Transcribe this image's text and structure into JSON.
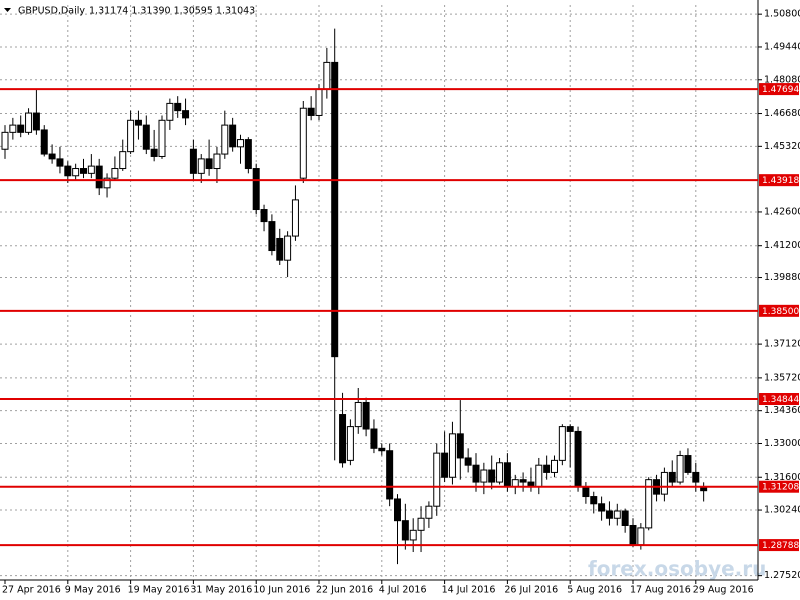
{
  "chart_data": {
    "type": "candlestick",
    "symbol": "GBPUSD,Daily",
    "quote": "1.31174 1.31390 1.30595 1.31043",
    "watermark": "forex.osobye.ru",
    "categories": [
      "27 Apr 2016",
      null,
      null,
      null,
      null,
      null,
      null,
      null,
      "9 May 2016",
      null,
      null,
      null,
      null,
      null,
      null,
      null,
      "19 May 2016",
      null,
      null,
      null,
      null,
      null,
      null,
      null,
      "31 May 2016",
      null,
      null,
      null,
      null,
      null,
      null,
      null,
      "10 Jun 2016",
      null,
      null,
      null,
      null,
      null,
      null,
      null,
      "22 Jun 2016",
      null,
      null,
      null,
      null,
      null,
      null,
      null,
      "4 Jul 2016",
      null,
      null,
      null,
      null,
      null,
      null,
      null,
      "14 Jul 2016",
      null,
      null,
      null,
      null,
      null,
      null,
      null,
      "26 Jul 2016",
      null,
      null,
      null,
      null,
      null,
      null,
      null,
      "5 Aug 2016",
      null,
      null,
      null,
      null,
      null,
      null,
      null,
      "17 Aug 2016",
      null,
      null,
      null,
      null,
      null,
      null,
      null,
      "29 Aug 2016",
      null
    ],
    "open": [
      1.452,
      1.459,
      1.462,
      1.459,
      1.467,
      1.46,
      1.45,
      1.448,
      1.445,
      1.441,
      1.444,
      1.442,
      1.445,
      1.436,
      1.44,
      1.444,
      1.451,
      1.464,
      1.462,
      1.452,
      1.449,
      1.464,
      1.471,
      1.468,
      1.452,
      1.442,
      1.448,
      1.444,
      1.45,
      1.462,
      1.453,
      1.456,
      1.444,
      1.427,
      1.422,
      1.415,
      1.406,
      1.416,
      1.44,
      1.469,
      1.466,
      1.477,
      1.488,
      1.342,
      1.323,
      1.337,
      1.347,
      1.336,
      1.328,
      1.327,
      1.307,
      1.298,
      1.29,
      1.294,
      1.299,
      1.304,
      1.326,
      1.316,
      1.334,
      1.324,
      1.321,
      1.314,
      1.319,
      1.314,
      1.322,
      1.312,
      1.315,
      1.314,
      1.312,
      1.321,
      1.318,
      1.323,
      1.337,
      1.335,
      1.312,
      1.308,
      1.305,
      1.302,
      1.299,
      1.302,
      1.296,
      1.288,
      1.295,
      1.315,
      1.309,
      1.318,
      1.314,
      1.325,
      1.318,
      1.31174
    ],
    "high": [
      1.462,
      1.465,
      1.466,
      1.469,
      1.477,
      1.462,
      1.454,
      1.453,
      1.447,
      1.446,
      1.448,
      1.45,
      1.448,
      1.442,
      1.449,
      1.456,
      1.468,
      1.468,
      1.466,
      1.46,
      1.466,
      1.473,
      1.474,
      1.473,
      1.456,
      1.45,
      1.456,
      1.453,
      1.468,
      1.465,
      1.458,
      1.457,
      1.446,
      1.429,
      1.425,
      1.419,
      1.418,
      1.437,
      1.472,
      1.474,
      1.479,
      1.494,
      1.502,
      1.351,
      1.34,
      1.353,
      1.349,
      1.34,
      1.33,
      1.33,
      1.309,
      1.305,
      1.299,
      1.304,
      1.306,
      1.33,
      1.335,
      1.339,
      1.348,
      1.328,
      1.326,
      1.322,
      1.325,
      1.324,
      1.326,
      1.317,
      1.318,
      1.32,
      1.324,
      1.325,
      1.325,
      1.338,
      1.338,
      1.337,
      1.314,
      1.31,
      1.308,
      1.306,
      1.305,
      1.303,
      1.299,
      1.297,
      1.316,
      1.317,
      1.32,
      1.323,
      1.327,
      1.328,
      1.322,
      1.3139
    ],
    "low": [
      1.448,
      1.456,
      1.457,
      1.458,
      1.458,
      1.449,
      1.446,
      1.442,
      1.438,
      1.439,
      1.44,
      1.44,
      1.433,
      1.432,
      1.439,
      1.443,
      1.45,
      1.456,
      1.45,
      1.447,
      1.448,
      1.46,
      1.465,
      1.462,
      1.439,
      1.438,
      1.441,
      1.438,
      1.448,
      1.451,
      1.446,
      1.442,
      1.425,
      1.418,
      1.408,
      1.404,
      1.399,
      1.414,
      1.438,
      1.464,
      1.464,
      1.473,
      1.323,
      1.32,
      1.321,
      1.334,
      1.333,
      1.326,
      1.325,
      1.304,
      1.28,
      1.286,
      1.285,
      1.285,
      1.295,
      1.3,
      1.314,
      1.313,
      1.315,
      1.318,
      1.31,
      1.309,
      1.311,
      1.313,
      1.31,
      1.309,
      1.31,
      1.31,
      1.309,
      1.315,
      1.316,
      1.321,
      1.32,
      1.31,
      1.305,
      1.301,
      1.298,
      1.296,
      1.296,
      1.293,
      1.287,
      1.286,
      1.294,
      1.306,
      1.306,
      1.312,
      1.313,
      1.317,
      1.31,
      1.30595
    ],
    "close": [
      1.459,
      1.462,
      1.459,
      1.467,
      1.46,
      1.45,
      1.448,
      1.445,
      1.441,
      1.444,
      1.442,
      1.445,
      1.436,
      1.44,
      1.444,
      1.451,
      1.464,
      1.462,
      1.452,
      1.449,
      1.464,
      1.471,
      1.468,
      1.465,
      1.442,
      1.448,
      1.444,
      1.45,
      1.462,
      1.453,
      1.456,
      1.444,
      1.427,
      1.422,
      1.41,
      1.406,
      1.416,
      1.431,
      1.469,
      1.466,
      1.477,
      1.488,
      1.366,
      1.322,
      1.337,
      1.347,
      1.336,
      1.328,
      1.327,
      1.307,
      1.298,
      1.29,
      1.294,
      1.299,
      1.304,
      1.326,
      1.316,
      1.334,
      1.324,
      1.321,
      1.314,
      1.319,
      1.314,
      1.322,
      1.312,
      1.315,
      1.314,
      1.312,
      1.321,
      1.318,
      1.323,
      1.337,
      1.335,
      1.312,
      1.308,
      1.305,
      1.302,
      1.299,
      1.302,
      1.296,
      1.288,
      1.295,
      1.315,
      1.309,
      1.318,
      1.314,
      1.325,
      1.318,
      1.314,
      1.31043
    ],
    "bull_color": "#ffffff",
    "bear_color": "#000000",
    "outline_color": "#000000",
    "level_color": "#e00000",
    "levels": [
      1.47694,
      1.43918,
      {
        "value": 1.385,
        "label": "1.38500"
      },
      1.34844,
      1.31208,
      1.28788
    ],
    "ylim": [
      1.2734,
      1.5118
    ],
    "yticks": [
      {
        "value": 1.508,
        "label": "1.50800"
      },
      {
        "value": 1.4944,
        "label": "1.49440"
      },
      {
        "value": 1.4808,
        "label": "1.48080"
      },
      {
        "value": 1.4668,
        "label": "1.46680"
      },
      {
        "value": 1.4532,
        "label": "1.45320"
      },
      {
        "value": 1.426,
        "label": "1.42600"
      },
      {
        "value": 1.412,
        "label": "1.41200"
      },
      {
        "value": 1.3988,
        "label": "1.39880"
      },
      {
        "value": 1.3712,
        "label": "1.37120"
      },
      {
        "value": 1.3572,
        "label": "1.35720"
      },
      {
        "value": 1.3436,
        "label": "1.34360"
      },
      {
        "value": 1.33,
        "label": "1.33000"
      },
      {
        "value": 1.316,
        "label": "1.31600"
      },
      {
        "value": 1.3024,
        "label": "1.30240"
      },
      {
        "value": 1.2752,
        "label": "1.27520"
      }
    ],
    "grid": true
  }
}
